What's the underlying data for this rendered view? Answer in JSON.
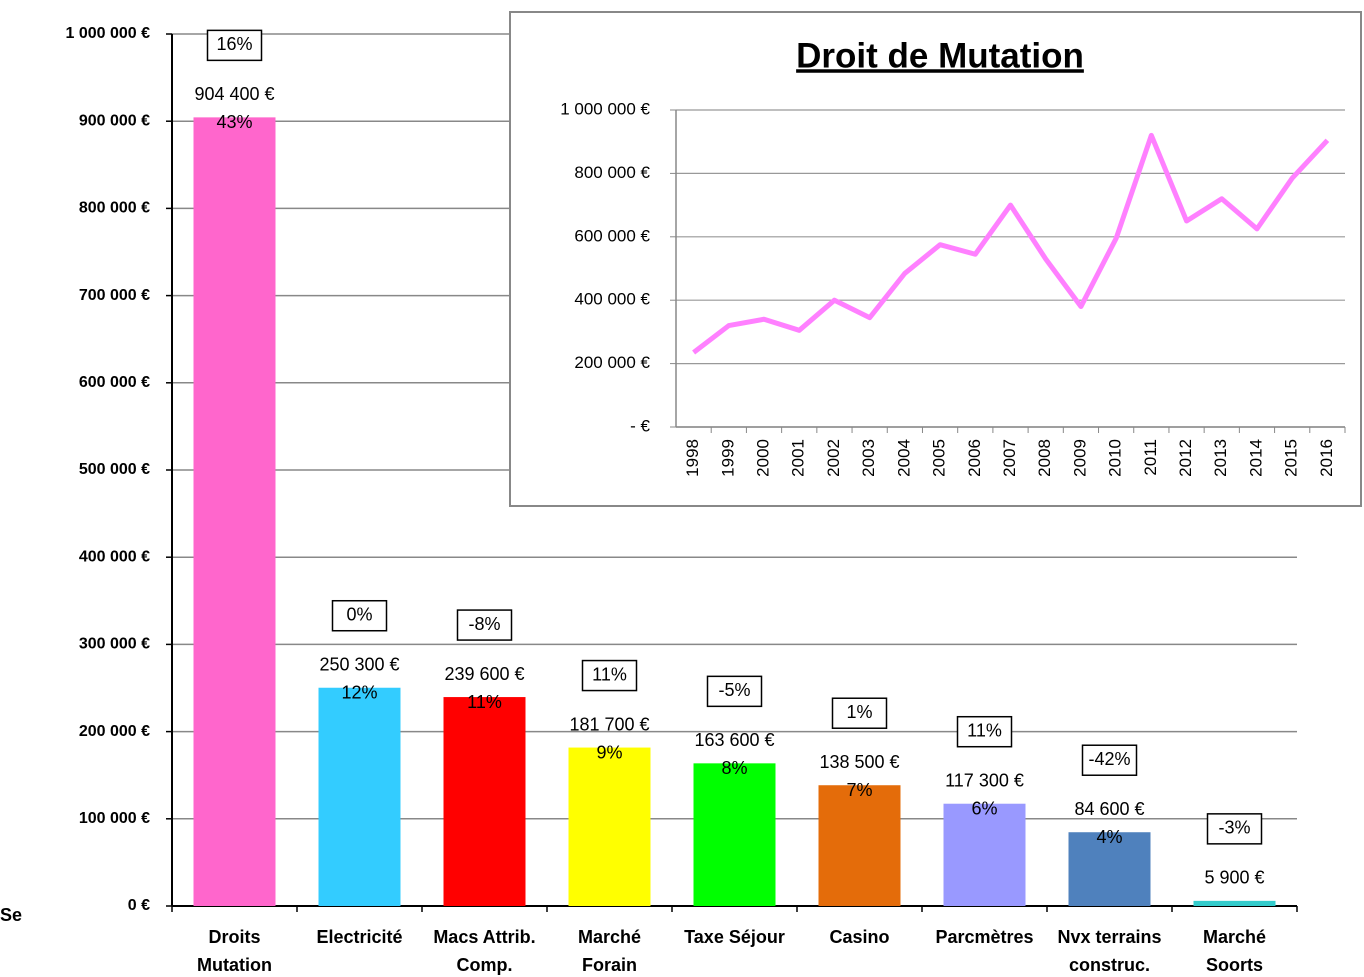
{
  "chart_data": [
    {
      "type": "bar",
      "annotation": "Se",
      "categories": [
        "Droits\nMutation",
        "Electricité",
        "Macs Attrib.\nComp.",
        "Marché\nForain",
        "Taxe Séjour",
        "Casino",
        "Parcmètres",
        "Nvx terrains\nconstruc.",
        "Marché\nSoorts"
      ],
      "values": [
        904400,
        250300,
        239600,
        181700,
        163600,
        138500,
        117300,
        84600,
        5900
      ],
      "value_labels": [
        "904 400 €",
        "250 300 €",
        "239 600 €",
        "181 700 €",
        "163 600 €",
        "138 500 €",
        "117 300 €",
        "84 600 €",
        "5 900 €"
      ],
      "share_labels": [
        "43%",
        "12%",
        "11%",
        "9%",
        "8%",
        "7%",
        "6%",
        "4%",
        null
      ],
      "change_labels": [
        "16%",
        "0%",
        "-8%",
        "11%",
        "-5%",
        "1%",
        "11%",
        "-42%",
        "-3%"
      ],
      "colors": [
        "#ff66cc",
        "#33ccff",
        "#ff0000",
        "#ffff00",
        "#00ff00",
        "#e46c0a",
        "#9999ff",
        "#4f81bd",
        "#33cccc"
      ],
      "ylim": [
        0,
        1000000
      ],
      "yticks": [
        {
          "value": 0,
          "label": "0 €"
        },
        {
          "value": 100000,
          "label": "100 000 €"
        },
        {
          "value": 200000,
          "label": "200 000 €"
        },
        {
          "value": 300000,
          "label": "300 000 €"
        },
        {
          "value": 400000,
          "label": "400 000 €"
        },
        {
          "value": 500000,
          "label": "500 000 €"
        },
        {
          "value": 600000,
          "label": "600 000 €"
        },
        {
          "value": 700000,
          "label": "700 000 €"
        },
        {
          "value": 800000,
          "label": "800 000 €"
        },
        {
          "value": 900000,
          "label": "900 000 €"
        },
        {
          "value": 1000000,
          "label": "1 000 000 €"
        }
      ],
      "grid": true
    },
    {
      "type": "line",
      "title": "Droit de Mutation",
      "categories": [
        "1998",
        "1999",
        "2000",
        "2001",
        "2002",
        "2003",
        "2004",
        "2005",
        "2006",
        "2007",
        "2008",
        "2009",
        "2010",
        "2011",
        "2012",
        "2013",
        "2014",
        "2015",
        "2016"
      ],
      "values": [
        235000,
        320000,
        340000,
        305000,
        400000,
        345000,
        485000,
        575000,
        545000,
        700000,
        530000,
        380000,
        595000,
        920000,
        650000,
        720000,
        625000,
        785000,
        904400
      ],
      "color": "#ff80ff",
      "ylim": [
        0,
        1000000
      ],
      "yticks": [
        {
          "value": 0,
          "label": "- €"
        },
        {
          "value": 200000,
          "label": "200 000 €"
        },
        {
          "value": 400000,
          "label": "400 000 €"
        },
        {
          "value": 600000,
          "label": "600 000 €"
        },
        {
          "value": 800000,
          "label": "800 000 €"
        },
        {
          "value": 1000000,
          "label": "1 000 000 €"
        }
      ],
      "grid": true
    }
  ]
}
